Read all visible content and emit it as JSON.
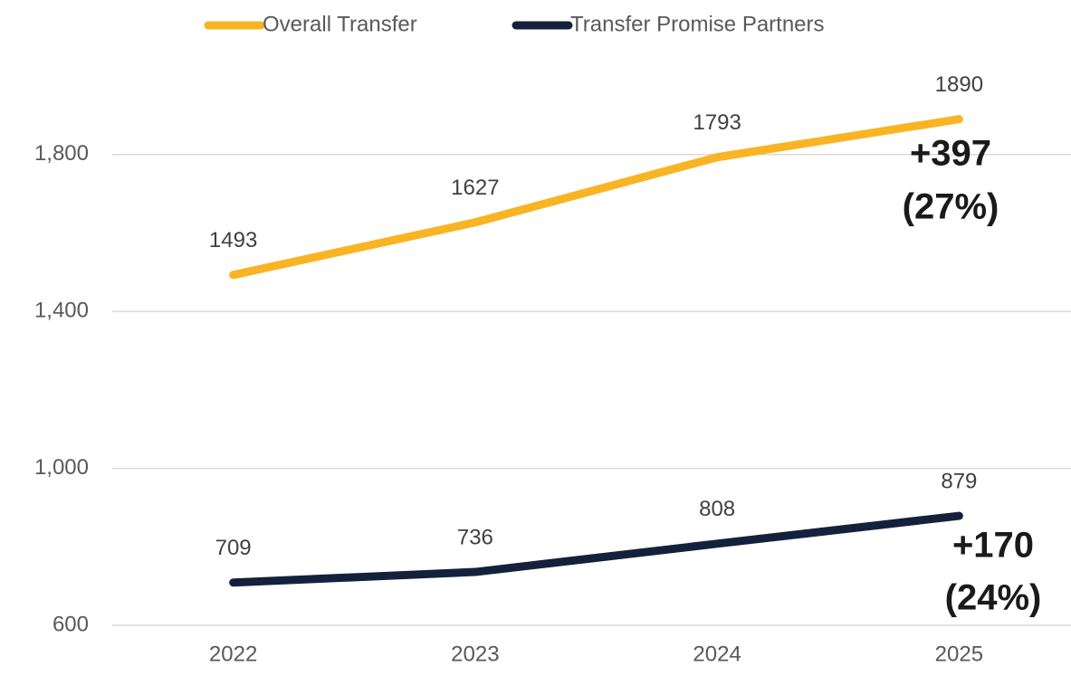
{
  "chart_data": {
    "type": "line",
    "categories": [
      "2022",
      "2023",
      "2024",
      "2025"
    ],
    "series": [
      {
        "name": "Overall Transfer",
        "color": "#f9b424",
        "values": [
          1493,
          1627,
          1793,
          1890
        ]
      },
      {
        "name": "Transfer Promise Partners",
        "color": "#14213d",
        "values": [
          709,
          736,
          808,
          879
        ]
      }
    ],
    "ylim": [
      600,
      2000
    ],
    "yticks": [
      600,
      {
        "value": 1000,
        "label": "1,000"
      },
      {
        "value": 1400,
        "label": "1,400"
      },
      {
        "value": 1800,
        "label": "1,800"
      }
    ],
    "grid": true,
    "legend": "top",
    "annotations": [
      "+397",
      "(27%)",
      "+170",
      "(24%)"
    ]
  }
}
